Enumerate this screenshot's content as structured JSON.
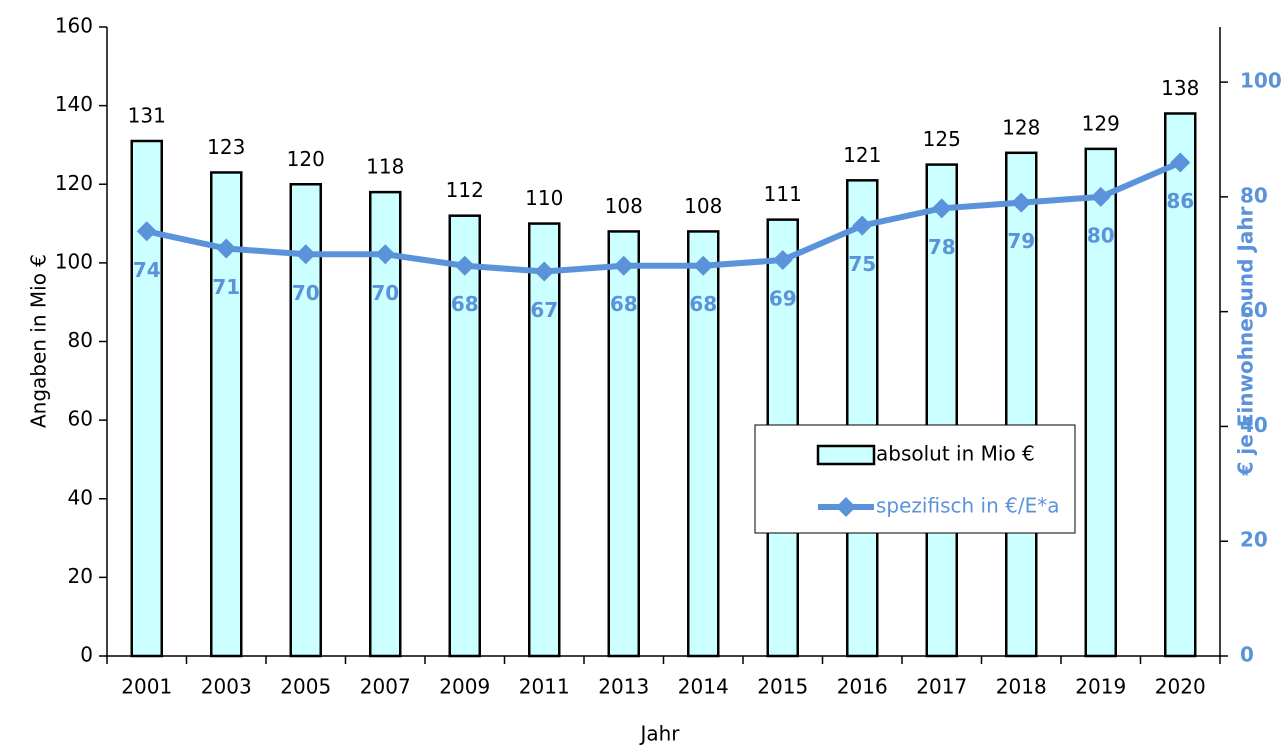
{
  "chart_data": {
    "type": "bar",
    "x_label": "Jahr",
    "y_label": "Angaben in Mio €",
    "y2_label": "€ je Einwohner und Jahr",
    "categories": [
      "2001",
      "2003",
      "2005",
      "2007",
      "2009",
      "2011",
      "2013",
      "2014",
      "2015",
      "2016",
      "2017",
      "2018",
      "2019",
      "2020"
    ],
    "series": [
      {
        "name": "absolut in Mio €",
        "type": "bar",
        "color": "#ccffff",
        "values": [
          131,
          123,
          120,
          118,
          112,
          110,
          108,
          108,
          111,
          121,
          125,
          128,
          129,
          138
        ]
      },
      {
        "name": "spezifisch  in €/E*a",
        "type": "line",
        "axis": "y2",
        "color": "#5b93db",
        "values": [
          74,
          71,
          70,
          70,
          68,
          67,
          68,
          68,
          69,
          75,
          78,
          79,
          80,
          86
        ]
      }
    ],
    "ylim": [
      0,
      160
    ],
    "yticks": [
      0,
      20,
      40,
      60,
      80,
      100,
      120,
      140,
      160
    ],
    "y2lim": [
      0,
      109.6
    ],
    "y2ticks": [
      0,
      20,
      40,
      60,
      80,
      100
    ]
  }
}
